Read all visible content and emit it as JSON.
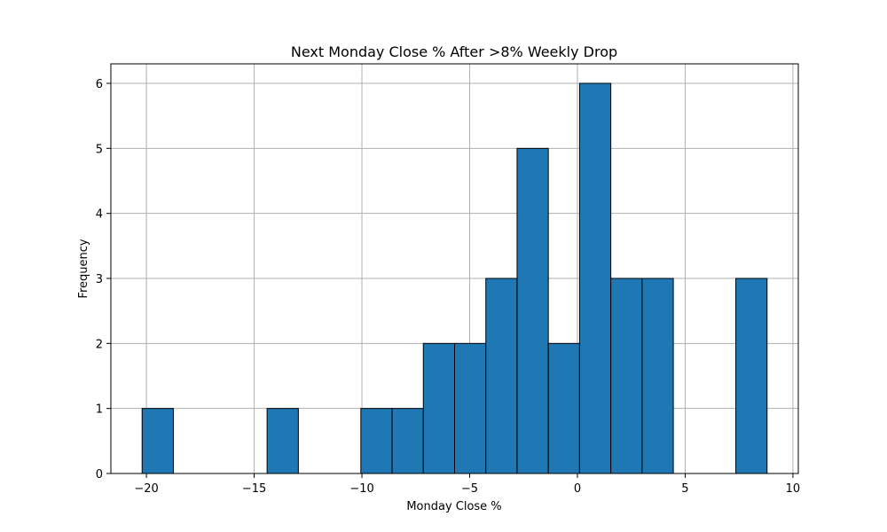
{
  "chart_data": {
    "type": "bar",
    "title": "Next Monday Close % After >8% Weekly Drop",
    "xlabel": "Monday Close %",
    "ylabel": "Frequency",
    "xlim": [
      -21.65,
      10.25
    ],
    "ylim": [
      0,
      6.3
    ],
    "xticks": [
      -20,
      -15,
      -10,
      -5,
      0,
      5,
      10
    ],
    "xtick_labels": [
      "−20",
      "−15",
      "−10",
      "−5",
      "0",
      "5",
      "10"
    ],
    "yticks": [
      0,
      1,
      2,
      3,
      4,
      5,
      6
    ],
    "ytick_labels": [
      "0",
      "1",
      "2",
      "3",
      "4",
      "5",
      "6"
    ],
    "grid": true,
    "bar_color": "#1f77b4",
    "edge_color": "#000000",
    "bins": [
      {
        "x0": -20.2,
        "x1": -18.75,
        "count": 1
      },
      {
        "x0": -18.75,
        "x1": -17.3,
        "count": 0
      },
      {
        "x0": -17.3,
        "x1": -15.85,
        "count": 0
      },
      {
        "x0": -15.85,
        "x1": -14.4,
        "count": 0
      },
      {
        "x0": -14.4,
        "x1": -12.95,
        "count": 1
      },
      {
        "x0": -12.95,
        "x1": -11.5,
        "count": 0
      },
      {
        "x0": -11.5,
        "x1": -10.05,
        "count": 0
      },
      {
        "x0": -10.05,
        "x1": -8.6,
        "count": 1
      },
      {
        "x0": -8.6,
        "x1": -7.15,
        "count": 1
      },
      {
        "x0": -7.15,
        "x1": -5.7,
        "count": 2
      },
      {
        "x0": -5.7,
        "x1": -4.25,
        "count": 2
      },
      {
        "x0": -4.25,
        "x1": -2.8,
        "count": 3
      },
      {
        "x0": -2.8,
        "x1": -1.35,
        "count": 5
      },
      {
        "x0": -1.35,
        "x1": 0.1,
        "count": 2
      },
      {
        "x0": 0.1,
        "x1": 1.55,
        "count": 6
      },
      {
        "x0": 1.55,
        "x1": 3.0,
        "count": 3
      },
      {
        "x0": 3.0,
        "x1": 4.45,
        "count": 3
      },
      {
        "x0": 4.45,
        "x1": 5.9,
        "count": 0
      },
      {
        "x0": 5.9,
        "x1": 7.35,
        "count": 0
      },
      {
        "x0": 7.35,
        "x1": 8.8,
        "count": 3
      }
    ]
  }
}
